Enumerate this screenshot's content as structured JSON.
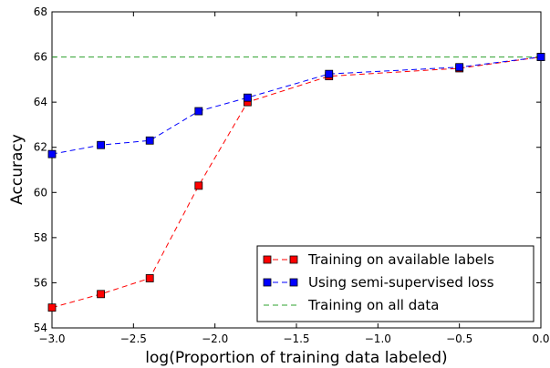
{
  "chart_data": {
    "type": "line",
    "title": "",
    "xlabel": "log(Proportion of training data labeled)",
    "ylabel": "Accuracy",
    "xlim": [
      -3.0,
      0.0
    ],
    "ylim": [
      54,
      68
    ],
    "xticks": [
      "−3.0",
      "−2.5",
      "−2.0",
      "−1.5",
      "−1.0",
      "−0.5",
      "0.0"
    ],
    "yticks": [
      "54",
      "56",
      "58",
      "60",
      "62",
      "64",
      "66",
      "68"
    ],
    "grid": false,
    "legend_position": "bottom-right",
    "series": [
      {
        "name": "Training on available labels",
        "color": "#ff0000",
        "marker": "square",
        "linestyle": "dashed",
        "x": [
          -3.0,
          -2.7,
          -2.4,
          -2.1,
          -1.8,
          -1.3,
          -0.5,
          0.0
        ],
        "y": [
          54.9,
          55.5,
          56.2,
          60.3,
          64.0,
          65.15,
          65.5,
          66.0
        ]
      },
      {
        "name": "Using semi-supervised loss",
        "color": "#0000ff",
        "marker": "square",
        "linestyle": "dashed",
        "x": [
          -3.0,
          -2.7,
          -2.4,
          -2.1,
          -1.8,
          -1.3,
          -0.5,
          0.0
        ],
        "y": [
          61.7,
          62.1,
          62.3,
          63.6,
          64.2,
          65.25,
          65.55,
          66.0
        ]
      },
      {
        "name": "Training on all data",
        "color": "#2ca02c",
        "marker": "none",
        "linestyle": "dashed",
        "x": [
          -3.0,
          0.0
        ],
        "y": [
          66.0,
          66.0
        ]
      }
    ]
  }
}
